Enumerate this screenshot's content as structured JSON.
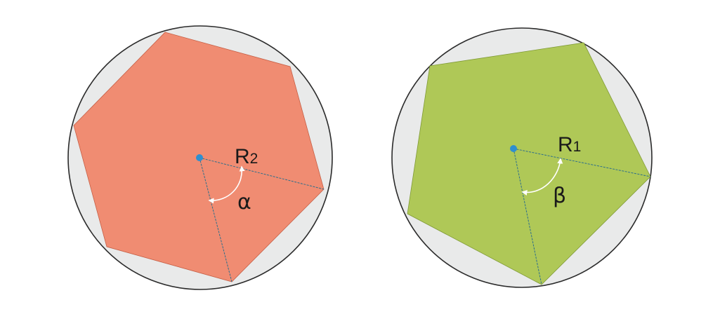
{
  "colors": {
    "circle_fill": "#e9eaea",
    "circle_stroke": "#2b2b2b",
    "hexagon_fill": "#f08c72",
    "pentagon_fill": "#afc857",
    "center_dot": "#2e8fd0",
    "radius_line": "#2d6f8c",
    "arc": "#ffffff"
  },
  "figures": {
    "left": {
      "shape": "hexagon",
      "radius_label": "R",
      "radius_subscript": "2",
      "angle_label": "α"
    },
    "right": {
      "shape": "pentagon",
      "radius_label": "R",
      "radius_subscript": "1",
      "angle_label": "β"
    }
  }
}
